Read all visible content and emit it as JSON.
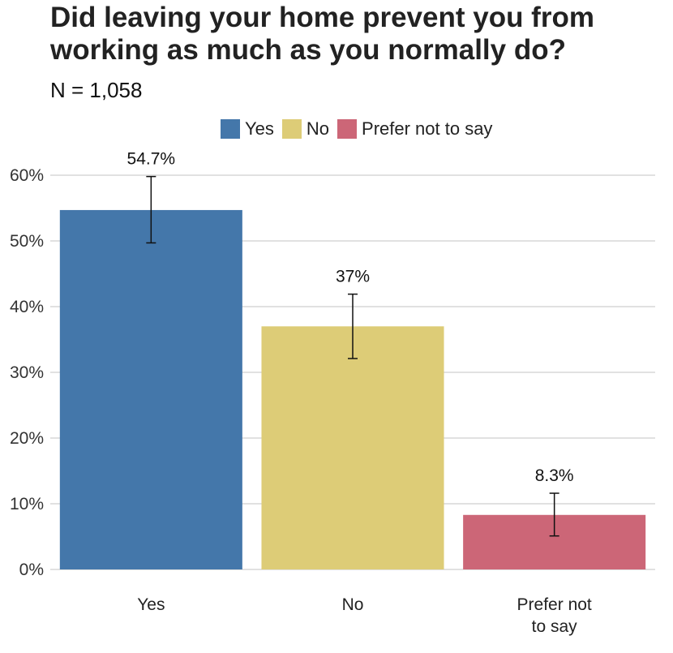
{
  "chart_data": {
    "type": "bar",
    "title": "Did leaving your home prevent you from working as much as you normally do?",
    "subtitle": "N = 1,058",
    "categories": [
      "Yes",
      "No",
      "Prefer not to say"
    ],
    "category_labels": [
      [
        "Yes"
      ],
      [
        "No"
      ],
      [
        "Prefer not",
        "to say"
      ]
    ],
    "values": [
      54.7,
      37,
      8.3
    ],
    "value_labels": [
      "54.7%",
      "37%",
      "8.3%"
    ],
    "error_bars": [
      [
        49.7,
        59.8
      ],
      [
        32.1,
        41.9
      ],
      [
        5.1,
        11.6
      ]
    ],
    "colors": [
      "#4477aa",
      "#ddcc77",
      "#cc6677"
    ],
    "legend": [
      "Yes",
      "No",
      "Prefer not to say"
    ],
    "legend_position": "top",
    "ylim": [
      0,
      60
    ],
    "yticks": [
      0,
      10,
      20,
      30,
      40,
      50,
      60
    ],
    "ytick_labels": [
      "0%",
      "10%",
      "20%",
      "30%",
      "40%",
      "50%",
      "60%"
    ],
    "grid": true
  }
}
